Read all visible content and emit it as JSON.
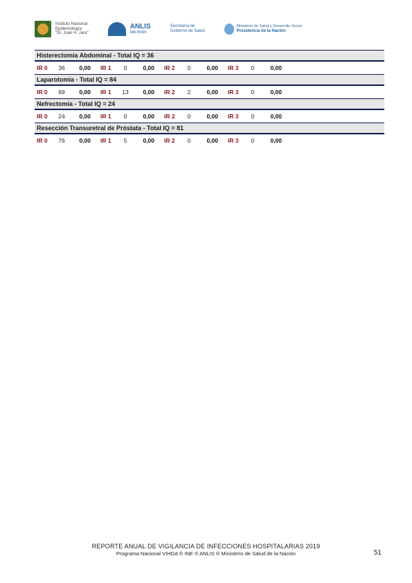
{
  "logos": {
    "ine": {
      "line1": "Instituto Nacional",
      "line2": "Epidemiología",
      "line3": "\"Dr. Juan H. Jara\""
    },
    "anlis": {
      "title": "ANLIS",
      "sub": "MALBRÁN"
    },
    "sec": {
      "line1": "Secretaría de",
      "line2": "Gobierno de Salud"
    },
    "pres": {
      "line1": "Ministerio de Salud y Desarrollo Social",
      "line2": "Presidencia de la Nación"
    }
  },
  "sections": [
    {
      "title": "Histerectomía Abdominal - Total IQ = 36",
      "row": {
        "ir0_val": "36",
        "ir0_rate": "0,00",
        "ir1_val": "0",
        "ir1_rate": "0,00",
        "ir2_val": "0",
        "ir2_rate": "0,00",
        "ir3_val": "0",
        "ir3_rate": "0,00"
      }
    },
    {
      "title": "Laparotomía - Total IQ = 84",
      "row": {
        "ir0_val": "69",
        "ir0_rate": "0,00",
        "ir1_val": "13",
        "ir1_rate": "0,00",
        "ir2_val": "2",
        "ir2_rate": "0,00",
        "ir3_val": "0",
        "ir3_rate": "0,00"
      }
    },
    {
      "title": "Nefrectomía - Total IQ = 24",
      "row": {
        "ir0_val": "24",
        "ir0_rate": "0,00",
        "ir1_val": "0",
        "ir1_rate": "0,00",
        "ir2_val": "0",
        "ir2_rate": "0,00",
        "ir3_val": "0",
        "ir3_rate": "0,00"
      }
    },
    {
      "title": "Resección Transuretral de Próstata - Total IQ = 81",
      "row": {
        "ir0_val": "76",
        "ir0_rate": "0,00",
        "ir1_val": "5",
        "ir1_rate": "0,00",
        "ir2_val": "0",
        "ir2_rate": "0,00",
        "ir3_val": "0",
        "ir3_rate": "0,00"
      }
    }
  ],
  "labels": {
    "ir0": "IR 0",
    "ir1": "IR 1",
    "ir2": "IR 2",
    "ir3": "IR 3"
  },
  "footer": {
    "title": "REPORTE ANUAL DE VIGILANCIA DE INFECCIONES HOSPITALARIAS 2019",
    "sub": "Programa Nacional VIHDA ® INE ® ANLIS ® Ministerio de Salud de la Nación"
  },
  "page_num": "51"
}
